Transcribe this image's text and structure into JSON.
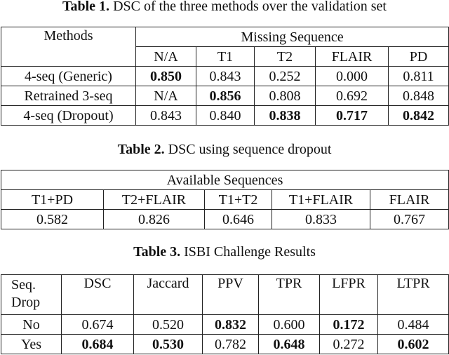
{
  "table1": {
    "caption_label": "Table 1.",
    "caption_text": " DSC of the three methods over the validation set",
    "header_methods": "Methods",
    "header_group": "Missing Sequence",
    "columns": [
      "N/A",
      "T1",
      "T2",
      "FLAIR",
      "PD"
    ],
    "rows": [
      {
        "method": "4-seq (Generic)",
        "values": [
          "0.850",
          "0.843",
          "0.252",
          "0.000",
          "0.811"
        ],
        "bold": [
          true,
          false,
          false,
          false,
          false
        ]
      },
      {
        "method": "Retrained 3-seq",
        "values": [
          "N/A",
          "0.856",
          "0.808",
          "0.692",
          "0.848"
        ],
        "bold": [
          false,
          true,
          false,
          false,
          false
        ]
      },
      {
        "method": "4-seq (Dropout)",
        "values": [
          "0.843",
          "0.840",
          "0.838",
          "0.717",
          "0.842"
        ],
        "bold": [
          false,
          false,
          true,
          true,
          true
        ]
      }
    ]
  },
  "table2": {
    "caption_label": "Table 2.",
    "caption_text": " DSC using sequence dropout",
    "header_group": "Available Sequences",
    "columns": [
      "T1+PD",
      "T2+FLAIR",
      "T1+T2",
      "T1+FLAIR",
      "FLAIR"
    ],
    "values": [
      "0.582",
      "0.826",
      "0.646",
      "0.833",
      "0.767"
    ]
  },
  "table3": {
    "caption_label": "Table 3.",
    "caption_text": " ISBI Challenge Results",
    "header_first": "Seq. Drop",
    "columns": [
      "DSC",
      "Jaccard",
      "PPV",
      "TPR",
      "LFPR",
      "LTPR"
    ],
    "rows": [
      {
        "label": "No",
        "values": [
          "0.674",
          "0.520",
          "0.832",
          "0.600",
          "0.172",
          "0.484"
        ],
        "bold": [
          false,
          false,
          true,
          false,
          true,
          false
        ]
      },
      {
        "label": "Yes",
        "values": [
          "0.684",
          "0.530",
          "0.782",
          "0.648",
          "0.272",
          "0.602"
        ],
        "bold": [
          true,
          true,
          false,
          true,
          false,
          true
        ]
      }
    ]
  }
}
